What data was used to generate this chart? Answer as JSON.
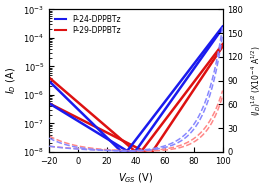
{
  "xlabel": "$V_{GS}$ (V)",
  "ylabel_left": "$I_D$ (A)",
  "ylabel_right": "$(I_D)^{1/2}$ (X10$^{-4}$ A$^{1/2}$)",
  "xlim": [
    -20,
    100
  ],
  "ylim_log": [
    1e-08,
    0.001
  ],
  "ylim_right": [
    0,
    180
  ],
  "xticks": [
    -20,
    0,
    20,
    40,
    60,
    80,
    100
  ],
  "yticks_right": [
    0,
    30,
    60,
    90,
    120,
    150,
    180
  ],
  "legend": [
    "P-24-DPPBTz",
    "P-29-DPPBTz"
  ],
  "blue": "#1a1aee",
  "red": "#dd1111",
  "blue_dashed": "#8888ff",
  "red_dashed": "#ff8888",
  "bg_color": "#ffffff",
  "lw_solid": 1.8,
  "lw_dashed": 1.1,
  "legend_fontsize": 5.5,
  "tick_fontsize": 6,
  "label_fontsize": 7,
  "ylabel_right_fontsize": 5.5
}
